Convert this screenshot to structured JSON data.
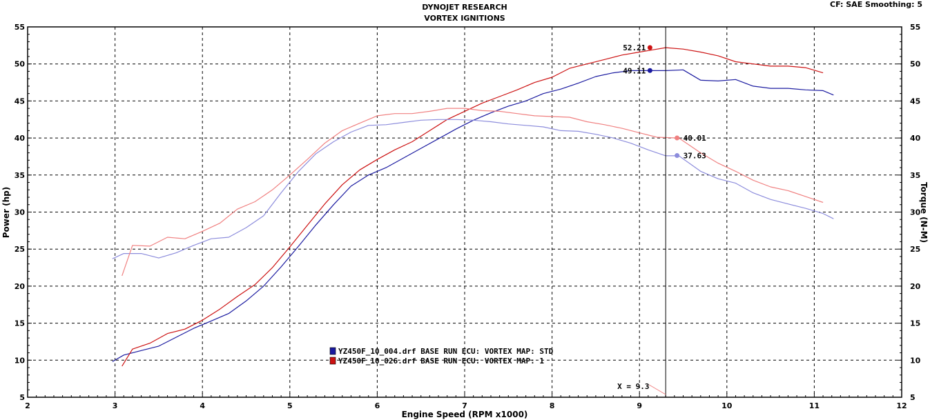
{
  "header": {
    "title_line1": "DYNOJET RESEARCH",
    "title_line2": "VORTEX IGNITIONS",
    "settings": "CF: SAE  Smoothing: 5"
  },
  "chart_data": {
    "type": "line",
    "xlabel": "Engine Speed (RPM x1000)",
    "ylabel": "Power (hp)",
    "y2label": "Torque (N-M)",
    "xlim": [
      2,
      12
    ],
    "ylim": [
      5,
      55
    ],
    "y2lim": [
      5,
      55
    ],
    "x_ticks": [
      "2",
      "3",
      "4",
      "5",
      "6",
      "7",
      "8",
      "9",
      "10",
      "11",
      "12"
    ],
    "y_ticks": [
      "5",
      "10",
      "15",
      "20",
      "25",
      "30",
      "35",
      "40",
      "45",
      "50",
      "55"
    ],
    "grid": true,
    "cursor": {
      "x": 9.3,
      "label": "X = 9.3"
    },
    "legend": [
      {
        "text": "YZ450F_10_004.drf BASE RUN  ECU: VORTEX MAP: STD",
        "color": "#1a1aa0"
      },
      {
        "text": "YZ450F_10_026.drf BASE RUN  ECU: VORTEX MAP: 1",
        "color": "#cc1111"
      }
    ],
    "series": [
      {
        "run": "004",
        "quantity": "power",
        "color": "#1a1aa0",
        "x": [
          2.97,
          3.1,
          3.3,
          3.5,
          3.7,
          3.9,
          4.1,
          4.3,
          4.5,
          4.7,
          4.9,
          5.1,
          5.3,
          5.5,
          5.7,
          5.9,
          6.1,
          6.3,
          6.5,
          6.7,
          6.9,
          7.1,
          7.3,
          7.5,
          7.7,
          7.9,
          8.1,
          8.3,
          8.5,
          8.7,
          8.9,
          9.1,
          9.3,
          9.5,
          9.7,
          9.9,
          10.1,
          10.3,
          10.5,
          10.7,
          10.9,
          11.1,
          11.22
        ],
        "y": [
          9.8,
          10.7,
          11.3,
          11.9,
          13.1,
          14.3,
          15.3,
          16.3,
          18.0,
          20.0,
          22.6,
          25.4,
          28.3,
          31.0,
          33.5,
          35.0,
          36.0,
          37.3,
          38.6,
          39.9,
          41.2,
          42.4,
          43.4,
          44.3,
          45.0,
          46.0,
          46.6,
          47.4,
          48.3,
          48.8,
          49.1,
          49.1,
          49.1,
          49.2,
          47.8,
          47.7,
          47.9,
          47.0,
          46.7,
          46.7,
          46.5,
          46.4,
          45.8
        ]
      },
      {
        "run": "026",
        "quantity": "power",
        "color": "#cc1111",
        "x": [
          3.08,
          3.2,
          3.4,
          3.6,
          3.8,
          4.0,
          4.2,
          4.4,
          4.6,
          4.8,
          5.0,
          5.2,
          5.4,
          5.6,
          5.8,
          6.0,
          6.2,
          6.4,
          6.6,
          6.8,
          7.0,
          7.2,
          7.4,
          7.6,
          7.8,
          8.0,
          8.2,
          8.4,
          8.6,
          8.8,
          9.0,
          9.15,
          9.3,
          9.5,
          9.7,
          9.9,
          10.1,
          10.3,
          10.5,
          10.7,
          10.9,
          11.1
        ],
        "y": [
          9.2,
          11.5,
          12.3,
          13.6,
          14.2,
          15.4,
          16.9,
          18.6,
          20.2,
          22.5,
          25.3,
          28.2,
          31.1,
          33.7,
          35.7,
          37.1,
          38.4,
          39.5,
          41.0,
          42.5,
          43.6,
          44.7,
          45.6,
          46.5,
          47.5,
          48.2,
          49.4,
          50.0,
          50.6,
          51.2,
          51.6,
          51.9,
          52.2,
          52.0,
          51.6,
          51.1,
          50.3,
          50.0,
          49.7,
          49.7,
          49.5,
          48.8
        ]
      },
      {
        "run": "004",
        "quantity": "torque",
        "color": "#8c8cdc",
        "x": [
          2.97,
          3.1,
          3.3,
          3.5,
          3.7,
          3.9,
          4.1,
          4.3,
          4.5,
          4.7,
          4.9,
          5.1,
          5.3,
          5.5,
          5.7,
          5.9,
          6.1,
          6.3,
          6.5,
          6.7,
          6.9,
          7.1,
          7.3,
          7.5,
          7.7,
          7.9,
          8.1,
          8.3,
          8.5,
          8.7,
          8.9,
          9.1,
          9.3,
          9.45,
          9.7,
          9.9,
          10.1,
          10.3,
          10.5,
          10.7,
          10.9,
          11.1,
          11.22
        ],
        "y": [
          23.7,
          24.4,
          24.4,
          23.8,
          24.5,
          25.5,
          26.4,
          26.6,
          27.9,
          29.5,
          32.6,
          35.5,
          37.9,
          39.5,
          40.8,
          41.7,
          41.8,
          42.1,
          42.4,
          42.5,
          42.5,
          42.4,
          42.2,
          41.9,
          41.7,
          41.5,
          41.0,
          40.9,
          40.5,
          40.0,
          39.3,
          38.4,
          37.6,
          37.6,
          35.5,
          34.5,
          33.9,
          32.6,
          31.7,
          31.1,
          30.5,
          29.8,
          29.1
        ]
      },
      {
        "run": "026",
        "quantity": "torque",
        "color": "#f08080",
        "x": [
          3.08,
          3.2,
          3.4,
          3.6,
          3.8,
          4.0,
          4.2,
          4.4,
          4.6,
          4.8,
          5.0,
          5.2,
          5.4,
          5.6,
          5.8,
          6.0,
          6.2,
          6.4,
          6.6,
          6.8,
          7.0,
          7.2,
          7.4,
          7.6,
          7.8,
          8.0,
          8.2,
          8.4,
          8.6,
          8.8,
          9.0,
          9.2,
          9.45,
          9.7,
          9.9,
          10.1,
          10.3,
          10.5,
          10.7,
          10.9,
          11.1
        ],
        "y": [
          21.4,
          25.5,
          25.4,
          26.6,
          26.4,
          27.4,
          28.5,
          30.4,
          31.4,
          33.0,
          35.0,
          37.1,
          39.3,
          41.0,
          42.0,
          43.0,
          43.3,
          43.3,
          43.6,
          44.0,
          44.0,
          43.7,
          43.6,
          43.3,
          43.0,
          42.9,
          42.8,
          42.2,
          41.8,
          41.3,
          40.7,
          40.1,
          40.0,
          38.0,
          36.6,
          35.5,
          34.3,
          33.4,
          32.9,
          32.1,
          31.3
        ]
      }
    ],
    "markers": [
      {
        "label": "52.21",
        "x": 9.12,
        "y": 52.21,
        "color": "#cc1111",
        "label_side": "left"
      },
      {
        "label": "49.11",
        "x": 9.12,
        "y": 49.11,
        "color": "#1a1aa0",
        "label_side": "left"
      },
      {
        "label": "40.01",
        "x": 9.43,
        "y": 40.01,
        "color": "#f08080",
        "label_side": "right"
      },
      {
        "label": "37.63",
        "x": 9.43,
        "y": 37.63,
        "color": "#8c8cdc",
        "label_side": "right"
      }
    ]
  }
}
